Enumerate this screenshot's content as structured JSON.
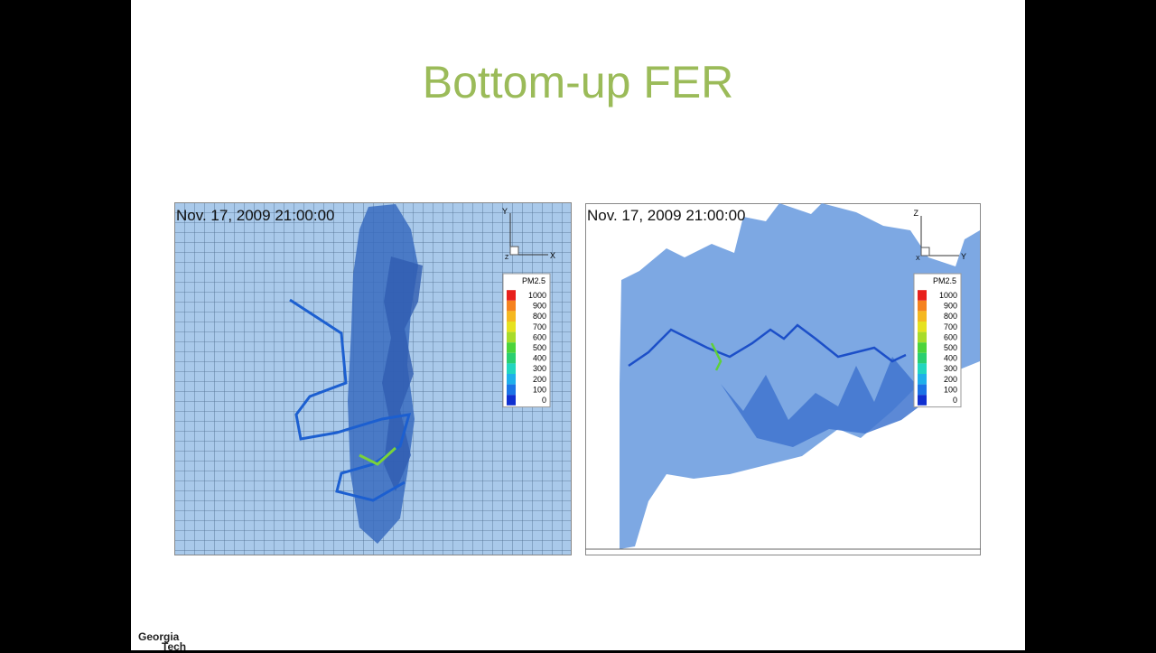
{
  "title": "Bottom-up FER",
  "panels": [
    {
      "timestamp": "Nov. 17, 2009 21:00:00",
      "axes": {
        "up": "Y",
        "right": "X",
        "out": "Z"
      }
    },
    {
      "timestamp": "Nov. 17, 2009 21:00:00",
      "axes": {
        "up": "Z",
        "right": "Y",
        "out": "X"
      }
    }
  ],
  "legend": {
    "title": "PM2.5",
    "levels": [
      1000,
      900,
      800,
      700,
      600,
      500,
      400,
      300,
      200,
      100,
      0
    ],
    "colors": [
      "#e8201c",
      "#f5821f",
      "#f5b820",
      "#e6e21f",
      "#a8dc2a",
      "#4cd43a",
      "#2acf70",
      "#22d6c0",
      "#1fb0ea",
      "#1c74e6",
      "#1030d0"
    ]
  },
  "logo": {
    "lines": [
      "Georgia",
      "Tech"
    ]
  }
}
